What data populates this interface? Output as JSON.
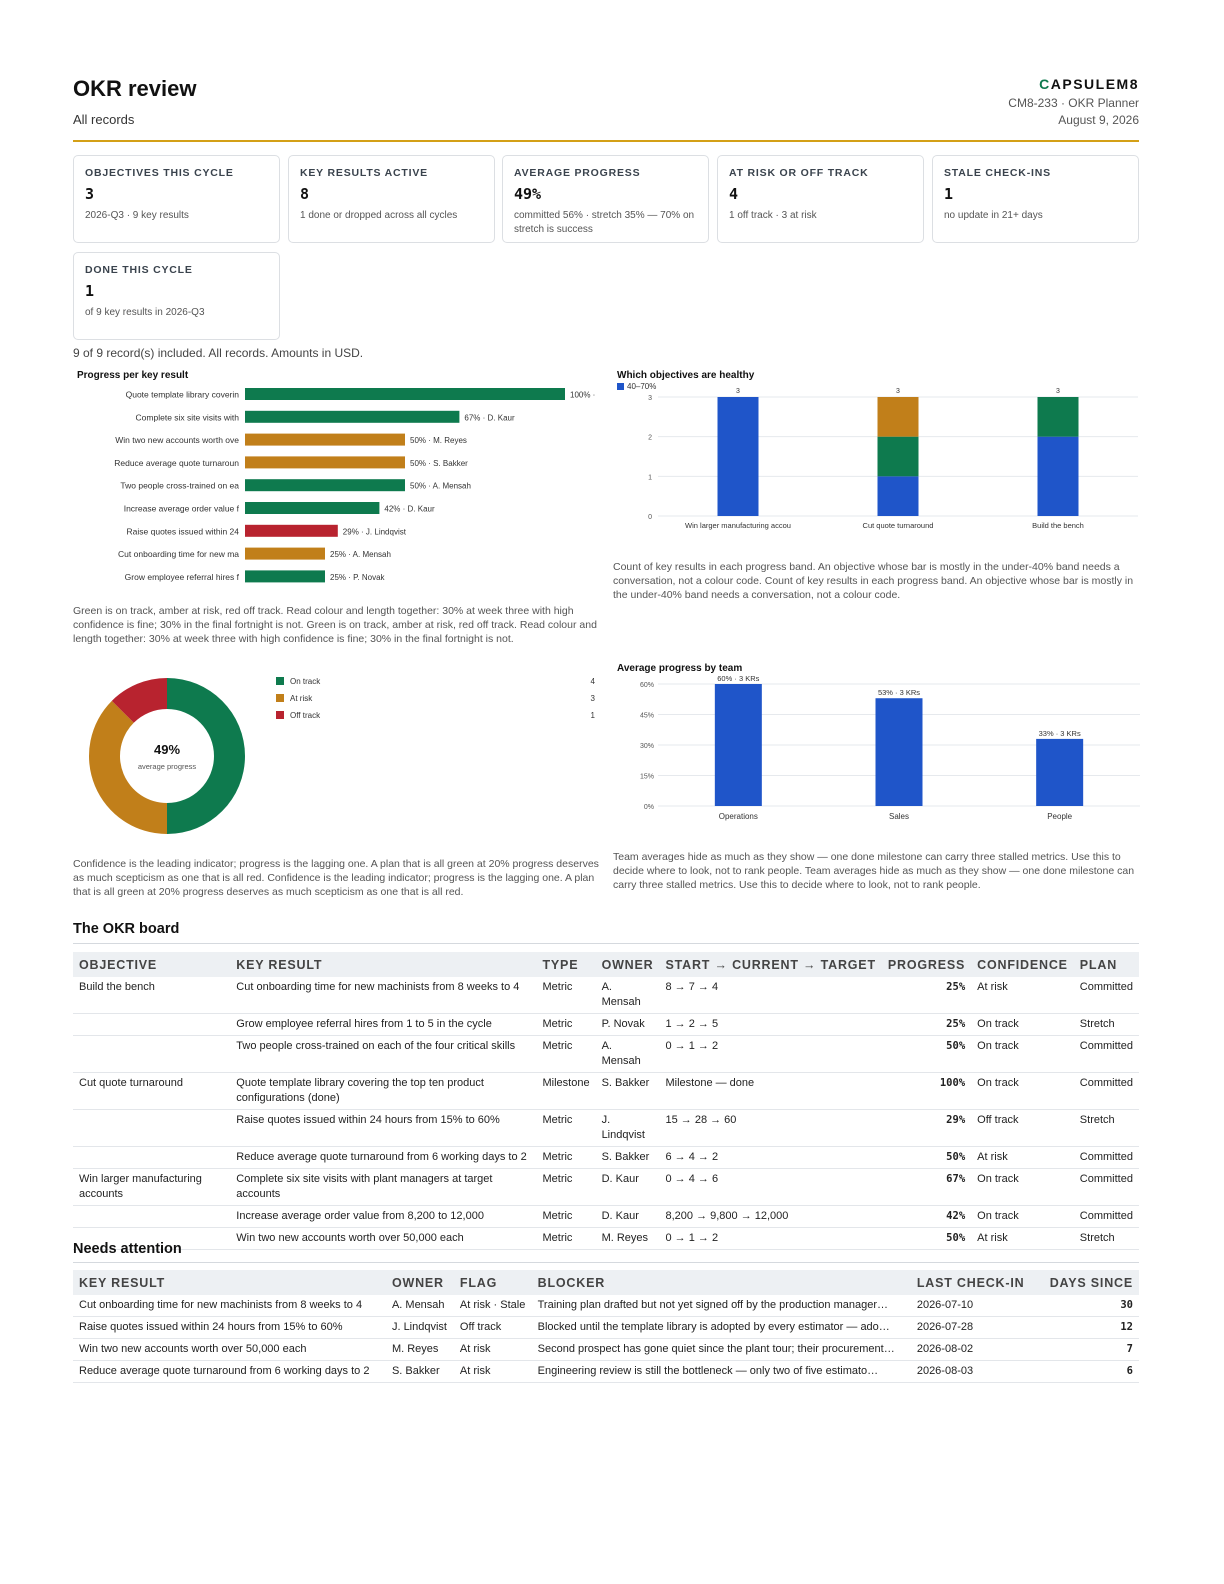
{
  "header": {
    "title": "OKR review",
    "subtitle": "All records",
    "brand_mark": "C",
    "brand_rest": "APSULEM8",
    "doc_id": "CM8-233 · OKR Planner",
    "date": "August 9, 2026"
  },
  "cards": [
    {
      "label": "Objectives this cycle",
      "value": "3",
      "note": "2026-Q3 · 9 key results"
    },
    {
      "label": "Key results active",
      "value": "8",
      "note": "1 done or dropped across all cycles"
    },
    {
      "label": "Average progress",
      "value": "49%",
      "note": "committed 56% · stretch 35% — 70% on stretch is success"
    },
    {
      "label": "At risk or off track",
      "value": "4",
      "note": "1 off track · 3 at risk"
    },
    {
      "label": "Stale check-ins",
      "value": "1",
      "note": "no update in 21+ days"
    },
    {
      "label": "Done this cycle",
      "value": "1",
      "note": "of 9 key results in 2026-Q3"
    }
  ],
  "records_note": "9 of 9 record(s) included. All records. Amounts in USD.",
  "colors": {
    "on_track": "#0e7a4e",
    "at_risk": "#c17f1a",
    "off_track": "#b8232f",
    "blue": "#1f55c9"
  },
  "chart_data": [
    {
      "type": "bar",
      "orientation": "horizontal",
      "title": "Progress per key result",
      "categories": [
        "Quote template library coverin",
        "Complete six site visits with",
        "Win two new accounts worth ove",
        "Reduce average quote turnaroun",
        "Two people cross-trained on ea",
        "Increase average order value f",
        "Raise quotes issued within 24",
        "Cut onboarding time for new ma",
        "Grow employee referral hires f"
      ],
      "values": [
        100,
        67,
        50,
        50,
        50,
        42,
        29,
        25,
        25
      ],
      "status": [
        "on_track",
        "on_track",
        "at_risk",
        "at_risk",
        "on_track",
        "on_track",
        "off_track",
        "at_risk",
        "on_track"
      ],
      "labels": [
        "100% ·",
        "67% · D. Kaur",
        "50% · M. Reyes",
        "50% · S. Bakker",
        "50% · A. Mensah",
        "42% · D. Kaur",
        "29% · J. Lindqvist",
        "25% · A. Mensah",
        "25% · P. Novak"
      ],
      "xlim": [
        0,
        100
      ],
      "caption": "Green is on track, amber at risk, red off track. Read colour and length together: 30% at week three with high confidence is fine; 30% in the final fortnight is not. Green is on track, amber at risk, red off track. Read colour and length together: 30% at week three with high confidence is fine; 30% in the final fortnight is not."
    },
    {
      "type": "bar",
      "stacked": true,
      "title": "Which objectives are healthy",
      "legend": [
        "40–70%"
      ],
      "categories": [
        "Win larger manufacturing accou",
        "Cut quote turnaround",
        "Build the bench"
      ],
      "series": [
        {
          "color": "blue",
          "values": [
            3,
            1,
            2
          ]
        },
        {
          "color": "on_track",
          "values": [
            0,
            1,
            1
          ]
        },
        {
          "color": "at_risk",
          "values": [
            0,
            1,
            0
          ]
        }
      ],
      "totals": [
        "3",
        "3",
        "3"
      ],
      "yticks": [
        "0",
        "1",
        "2",
        "3"
      ],
      "ylim": [
        0,
        3
      ],
      "caption": "Count of key results in each progress band. An objective whose bar is mostly in the under-40% band needs a conversation, not a colour code. Count of key results in each progress band. An objective whose bar is mostly in the under-40% band needs a conversation, not a colour code."
    },
    {
      "type": "pie",
      "donut": true,
      "center_value": "49%",
      "center_label": "average progress",
      "slices": [
        {
          "name": "On track",
          "value": 4,
          "label": "4",
          "color": "on_track"
        },
        {
          "name": "At risk",
          "value": 3,
          "label": "3",
          "color": "at_risk"
        },
        {
          "name": "Off track",
          "value": 1,
          "label": "1",
          "color": "off_track"
        }
      ],
      "caption": "Confidence is the leading indicator; progress is the lagging one. A plan that is all green at 20% progress deserves as much scepticism as one that is all red. Confidence is the leading indicator; progress is the lagging one. A plan that is all green at 20% progress deserves as much scepticism as one that is all red."
    },
    {
      "type": "bar",
      "title": "Average progress by team",
      "categories": [
        "Operations",
        "Sales",
        "People"
      ],
      "values": [
        60,
        53,
        33
      ],
      "labels": [
        "60% · 3 KRs",
        "53% · 3 KRs",
        "33% · 3 KRs"
      ],
      "yticks": [
        "0%",
        "15%",
        "30%",
        "45%",
        "60%"
      ],
      "ylim": [
        0,
        60
      ],
      "caption": "Team averages hide as much as they show — one done milestone can carry three stalled metrics. Use this to decide where to look, not to rank people. Team averages hide as much as they show — one done milestone can carry three stalled metrics. Use this to decide where to look, not to rank people."
    }
  ],
  "board": {
    "title": "The OKR board",
    "headers": [
      "OBJECTIVE",
      "KEY RESULT",
      "TYPE",
      "OWNER",
      "START → CURRENT → TARGET",
      "PROGRESS",
      "CONFIDENCE",
      "PLAN"
    ],
    "rows": [
      [
        "Build the bench",
        "Cut onboarding time for new machinists from 8 weeks to 4",
        "Metric",
        "A. Mensah",
        "8 → 7 → 4",
        "25%",
        "At risk",
        "Committed"
      ],
      [
        "",
        "Grow employee referral hires from 1 to 5 in the cycle",
        "Metric",
        "P. Novak",
        "1 → 2 → 5",
        "25%",
        "On track",
        "Stretch"
      ],
      [
        "",
        "Two people cross-trained on each of the four critical skills",
        "Metric",
        "A. Mensah",
        "0 → 1 → 2",
        "50%",
        "On track",
        "Committed"
      ],
      [
        "Cut quote turnaround",
        "Quote template library covering the top ten product configurations (done)",
        "Milestone",
        "S. Bakker",
        "Milestone — done",
        "100%",
        "On track",
        "Committed"
      ],
      [
        "",
        "Raise quotes issued within 24 hours from 15% to 60%",
        "Metric",
        "J. Lindqvist",
        "15 → 28 → 60",
        "29%",
        "Off track",
        "Stretch"
      ],
      [
        "",
        "Reduce average quote turnaround from 6 working days to 2",
        "Metric",
        "S. Bakker",
        "6 → 4 → 2",
        "50%",
        "At risk",
        "Committed"
      ],
      [
        "Win larger manufacturing accounts",
        "Complete six site visits with plant managers at target accounts",
        "Metric",
        "D. Kaur",
        "0 → 4 → 6",
        "67%",
        "On track",
        "Committed"
      ],
      [
        "",
        "Increase average order value from 8,200 to 12,000",
        "Metric",
        "D. Kaur",
        "8,200 → 9,800 → 12,000",
        "42%",
        "On track",
        "Committed"
      ],
      [
        "",
        "Win two new accounts worth over 50,000 each",
        "Metric",
        "M. Reyes",
        "0 → 1 → 2",
        "50%",
        "At risk",
        "Stretch"
      ]
    ]
  },
  "attention": {
    "title": "Needs attention",
    "headers": [
      "KEY RESULT",
      "OWNER",
      "FLAG",
      "BLOCKER",
      "LAST CHECK-IN",
      "DAYS SINCE"
    ],
    "rows": [
      [
        "Cut onboarding time for new machinists from 8 weeks to 4",
        "A. Mensah",
        "At risk · Stale",
        "Training plan drafted but not yet signed off by the production manager…",
        "2026-07-10",
        "30"
      ],
      [
        "Raise quotes issued within 24 hours from 15% to 60%",
        "J. Lindqvist",
        "Off track",
        "Blocked until the template library is adopted by every estimator — ado…",
        "2026-07-28",
        "12"
      ],
      [
        "Win two new accounts worth over 50,000 each",
        "M. Reyes",
        "At risk",
        "Second prospect has gone quiet since the plant tour; their procurement…",
        "2026-08-02",
        "7"
      ],
      [
        "Reduce average quote turnaround from 6 working days to 2",
        "S. Bakker",
        "At risk",
        "Engineering review is still the bottleneck — only two of five estimato…",
        "2026-08-03",
        "6"
      ]
    ]
  }
}
